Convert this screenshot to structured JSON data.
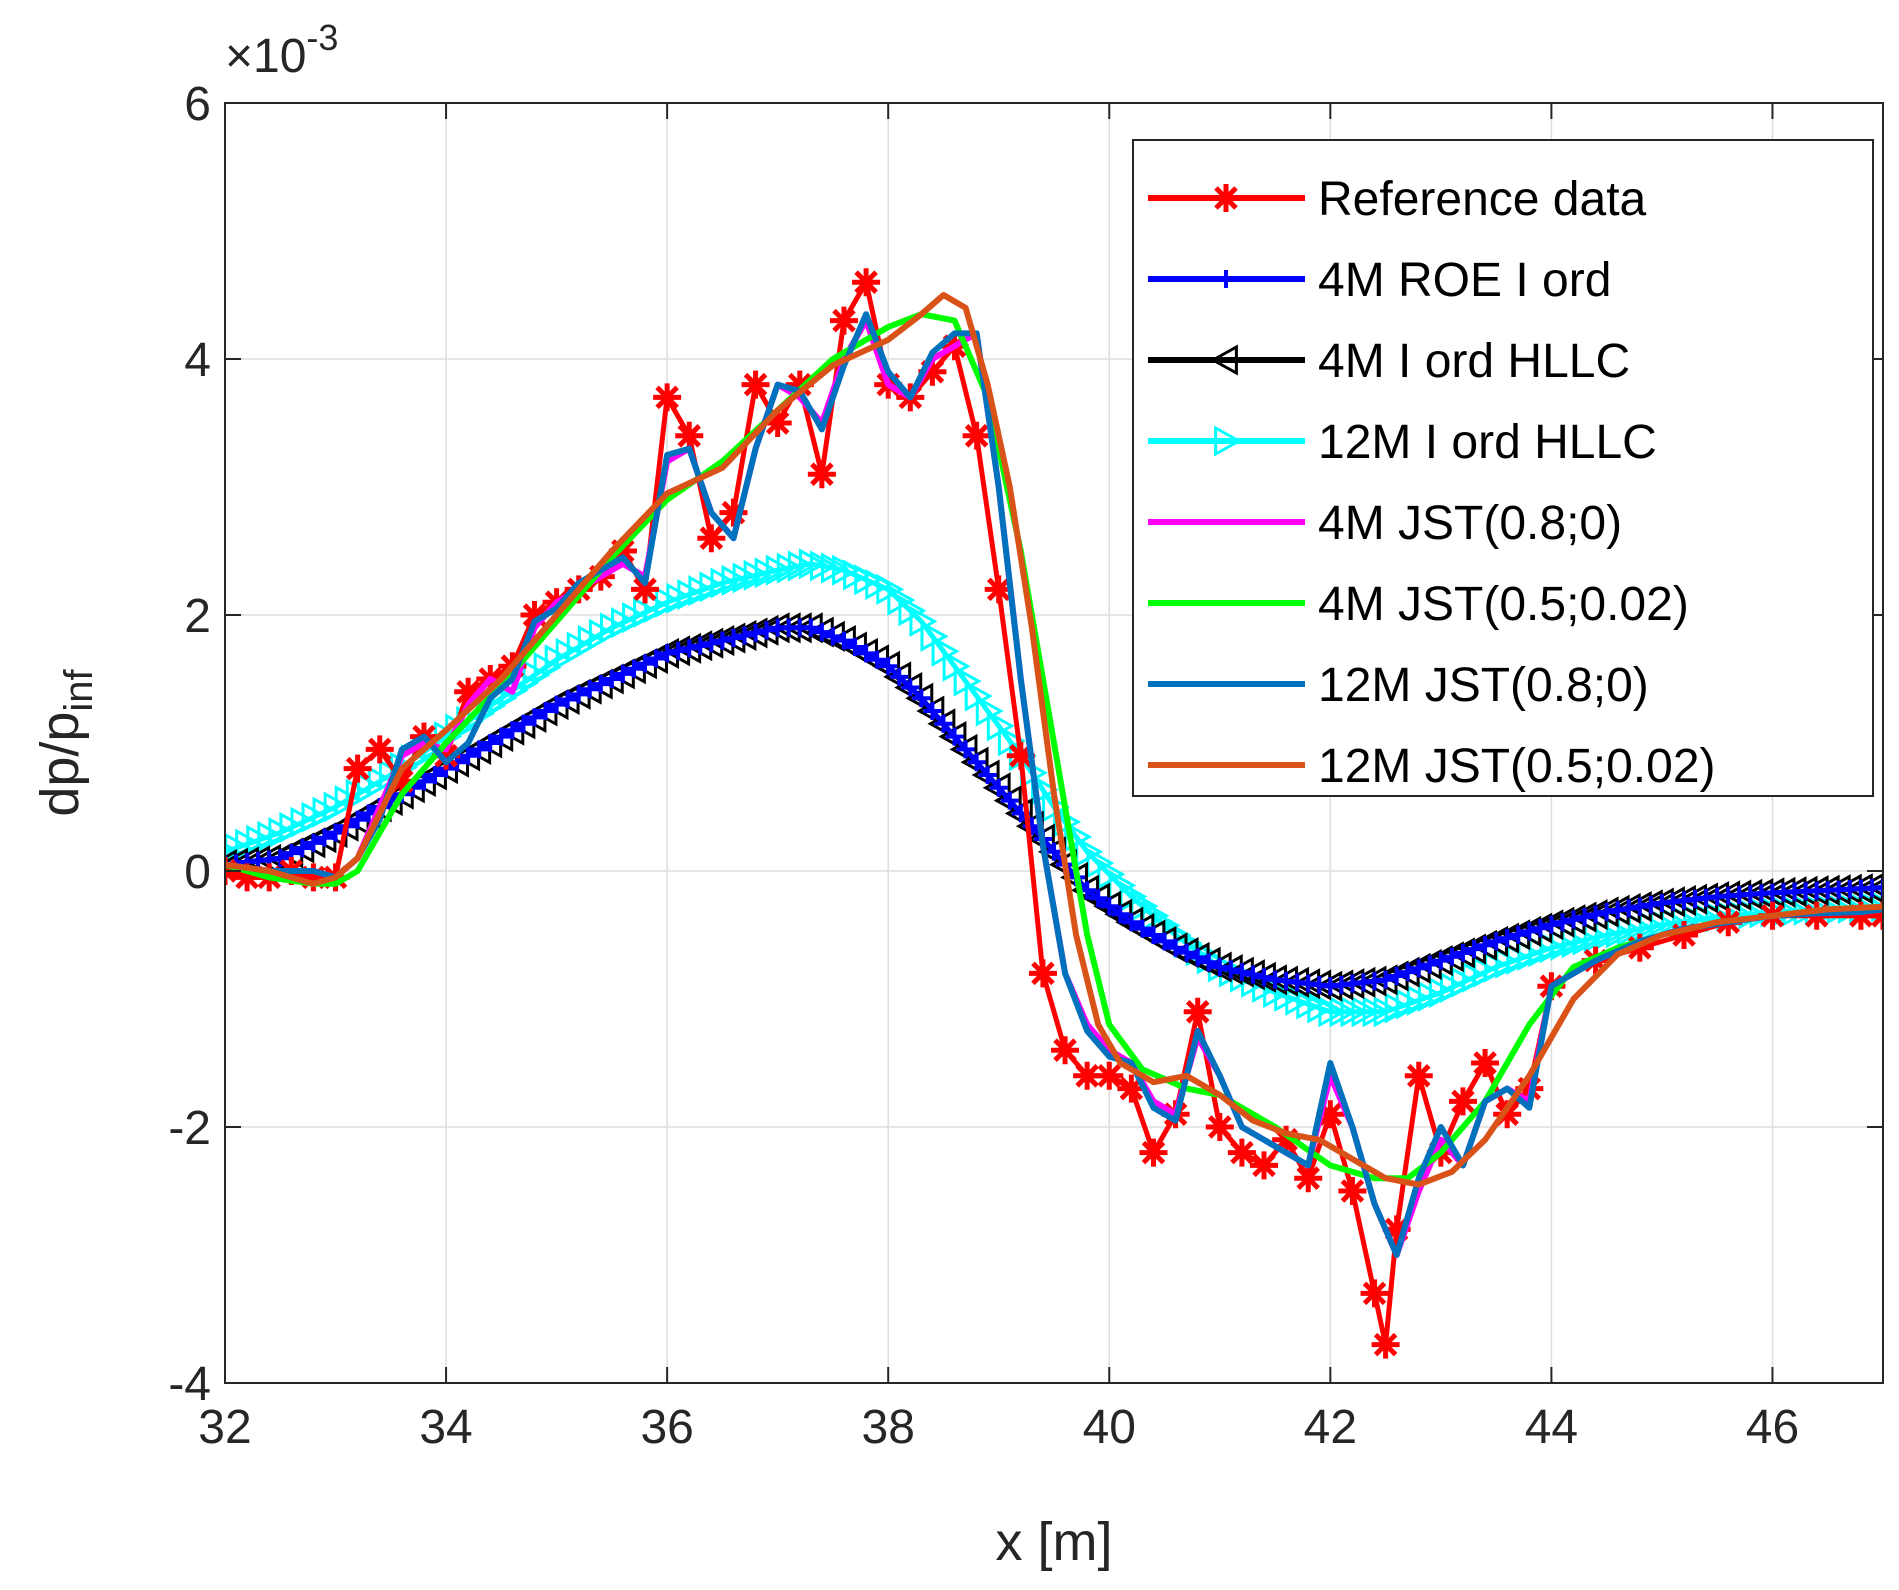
{
  "chart_data": {
    "type": "line",
    "xlabel": "x [m]",
    "ylabel_base": "dp/p",
    "ylabel_sub": "inf",
    "exponent_label": {
      "prefix": "×10",
      "power": "-3"
    },
    "xlim": [
      32,
      47
    ],
    "ylim": [
      -4,
      6
    ],
    "xticks": [
      32,
      34,
      36,
      38,
      40,
      42,
      44,
      46
    ],
    "yticks": [
      -4,
      -2,
      0,
      2,
      4,
      6
    ],
    "xtick_labels": [
      "32",
      "34",
      "36",
      "38",
      "40",
      "42",
      "44",
      "46"
    ],
    "ytick_labels": [
      "-4",
      "-2",
      "0",
      "2",
      "4",
      "6"
    ],
    "grid": true,
    "legend_position": "top-right",
    "series": [
      {
        "name": "Reference data",
        "color": "#ff0000",
        "marker": "star",
        "x": [
          32.0,
          32.2,
          32.4,
          32.6,
          32.8,
          33.0,
          33.2,
          33.4,
          33.6,
          33.8,
          34.0,
          34.2,
          34.4,
          34.6,
          34.8,
          35.0,
          35.2,
          35.4,
          35.6,
          35.8,
          36.0,
          36.2,
          36.4,
          36.6,
          36.8,
          37.0,
          37.2,
          37.4,
          37.6,
          37.8,
          38.0,
          38.2,
          38.4,
          38.6,
          38.8,
          39.0,
          39.2,
          39.4,
          39.6,
          39.8,
          40.0,
          40.2,
          40.4,
          40.6,
          40.8,
          41.0,
          41.2,
          41.4,
          41.6,
          41.8,
          42.0,
          42.2,
          42.4,
          42.5,
          42.6,
          42.8,
          43.0,
          43.2,
          43.4,
          43.6,
          43.8,
          44.0,
          44.4,
          44.8,
          45.2,
          45.6,
          46.0,
          46.4,
          46.8,
          47.0
        ],
        "y": [
          0.0,
          -0.05,
          -0.05,
          0.0,
          -0.05,
          -0.05,
          0.8,
          0.95,
          0.7,
          1.05,
          0.9,
          1.4,
          1.5,
          1.6,
          2.0,
          2.1,
          2.2,
          2.3,
          2.5,
          2.2,
          3.7,
          3.4,
          2.6,
          2.8,
          3.8,
          3.5,
          3.8,
          3.1,
          4.3,
          4.6,
          3.8,
          3.7,
          3.9,
          4.1,
          3.4,
          2.2,
          0.9,
          -0.8,
          -1.4,
          -1.6,
          -1.6,
          -1.7,
          -2.2,
          -1.9,
          -1.1,
          -2.0,
          -2.2,
          -2.3,
          -2.1,
          -2.4,
          -1.9,
          -2.5,
          -3.3,
          -3.7,
          -2.8,
          -1.6,
          -2.2,
          -1.8,
          -1.5,
          -1.9,
          -1.7,
          -0.9,
          -0.7,
          -0.6,
          -0.5,
          -0.4,
          -0.35,
          -0.35,
          -0.35,
          -0.35
        ]
      },
      {
        "name": "4M  ROE I ord",
        "color": "#0000ff",
        "marker": "plus",
        "x": [
          32.0,
          32.5,
          33.0,
          33.5,
          34.0,
          34.5,
          35.0,
          35.5,
          36.0,
          36.5,
          37.0,
          37.3,
          37.6,
          38.0,
          38.3,
          38.6,
          38.9,
          39.2,
          39.5,
          39.8,
          40.2,
          40.6,
          41.0,
          41.5,
          42.0,
          42.5,
          43.0,
          43.5,
          44.0,
          44.5,
          45.0,
          45.5,
          46.0,
          46.5,
          47.0
        ],
        "y": [
          0.05,
          0.1,
          0.3,
          0.55,
          0.8,
          1.05,
          1.3,
          1.5,
          1.7,
          1.8,
          1.9,
          1.9,
          1.8,
          1.6,
          1.35,
          1.05,
          0.75,
          0.45,
          0.15,
          -0.15,
          -0.4,
          -0.6,
          -0.75,
          -0.85,
          -0.9,
          -0.85,
          -0.7,
          -0.55,
          -0.42,
          -0.32,
          -0.25,
          -0.2,
          -0.17,
          -0.15,
          -0.13
        ]
      },
      {
        "name": "4M I ord HLLC",
        "color": "#000000",
        "marker": "triangle-left",
        "x": [
          32.0,
          32.5,
          33.0,
          33.5,
          34.0,
          34.5,
          35.0,
          35.5,
          36.0,
          36.5,
          37.0,
          37.3,
          37.6,
          38.0,
          38.3,
          38.6,
          38.9,
          39.2,
          39.5,
          39.8,
          40.2,
          40.6,
          41.0,
          41.5,
          42.0,
          42.5,
          43.0,
          43.5,
          44.0,
          44.5,
          45.0,
          45.5,
          46.0,
          46.5,
          47.0
        ],
        "y": [
          0.05,
          0.1,
          0.3,
          0.55,
          0.8,
          1.05,
          1.3,
          1.5,
          1.7,
          1.8,
          1.9,
          1.9,
          1.8,
          1.6,
          1.35,
          1.05,
          0.75,
          0.45,
          0.15,
          -0.15,
          -0.4,
          -0.6,
          -0.75,
          -0.85,
          -0.9,
          -0.85,
          -0.7,
          -0.55,
          -0.42,
          -0.32,
          -0.25,
          -0.2,
          -0.17,
          -0.15,
          -0.13
        ]
      },
      {
        "name": "12M I ord HLLC",
        "color": "#00ffff",
        "marker": "triangle-right",
        "x": [
          32.0,
          32.5,
          33.0,
          33.5,
          34.0,
          34.5,
          35.0,
          35.5,
          36.0,
          36.5,
          37.0,
          37.3,
          37.6,
          38.0,
          38.3,
          38.6,
          38.9,
          39.2,
          39.5,
          39.8,
          40.2,
          40.6,
          41.0,
          41.5,
          42.0,
          42.5,
          43.0,
          43.5,
          44.0,
          44.5,
          45.0,
          45.5,
          46.0,
          46.5,
          47.0
        ],
        "y": [
          0.15,
          0.3,
          0.5,
          0.75,
          1.05,
          1.35,
          1.65,
          1.9,
          2.1,
          2.25,
          2.35,
          2.4,
          2.35,
          2.2,
          1.95,
          1.6,
          1.25,
          0.9,
          0.5,
          0.15,
          -0.2,
          -0.5,
          -0.75,
          -0.95,
          -1.1,
          -1.1,
          -0.95,
          -0.75,
          -0.6,
          -0.5,
          -0.42,
          -0.36,
          -0.32,
          -0.3,
          -0.28
        ]
      },
      {
        "name": "4M JST(0.8;0)",
        "color": "#ff00ff",
        "marker": "none",
        "x": [
          32.0,
          32.4,
          32.8,
          33.0,
          33.2,
          33.4,
          33.6,
          33.8,
          34.0,
          34.2,
          34.4,
          34.6,
          34.8,
          35.0,
          35.2,
          35.4,
          35.6,
          35.8,
          36.0,
          36.2,
          36.4,
          36.6,
          36.8,
          37.0,
          37.2,
          37.4,
          37.6,
          37.8,
          38.0,
          38.2,
          38.4,
          38.6,
          38.8,
          39.0,
          39.2,
          39.4,
          39.6,
          39.8,
          40.0,
          40.2,
          40.4,
          40.6,
          40.8,
          41.0,
          41.2,
          41.4,
          41.6,
          41.8,
          42.0,
          42.2,
          42.4,
          42.6,
          42.8,
          43.0,
          43.2,
          43.4,
          43.6,
          43.8,
          44.0,
          44.4,
          44.8,
          45.2,
          45.6,
          46.0,
          46.4,
          46.8,
          47.0
        ],
        "y": [
          0.05,
          0.0,
          0.0,
          -0.05,
          0.1,
          0.5,
          0.9,
          1.0,
          0.95,
          1.3,
          1.5,
          1.4,
          1.9,
          2.1,
          2.2,
          2.3,
          2.4,
          2.3,
          3.2,
          3.3,
          2.8,
          2.6,
          3.3,
          3.8,
          3.7,
          3.5,
          4.0,
          4.3,
          3.8,
          3.7,
          4.0,
          4.1,
          4.2,
          3.0,
          1.5,
          0.2,
          -0.8,
          -1.2,
          -1.4,
          -1.5,
          -1.8,
          -1.9,
          -1.3,
          -1.6,
          -2.0,
          -2.1,
          -2.2,
          -2.3,
          -1.6,
          -2.0,
          -2.6,
          -3.0,
          -2.5,
          -2.1,
          -2.3,
          -1.8,
          -1.7,
          -1.8,
          -0.9,
          -0.7,
          -0.55,
          -0.45,
          -0.4,
          -0.35,
          -0.33,
          -0.32,
          -0.3
        ]
      },
      {
        "name": "4M JST(0.5;0.02)",
        "color": "#00ff00",
        "marker": "none",
        "x": [
          32.0,
          32.4,
          32.8,
          33.0,
          33.2,
          33.6,
          34.0,
          34.5,
          35.0,
          35.5,
          36.0,
          36.5,
          37.0,
          37.5,
          38.0,
          38.3,
          38.6,
          38.9,
          39.2,
          39.5,
          39.8,
          40.0,
          40.3,
          40.7,
          41.0,
          41.5,
          42.0,
          42.4,
          42.7,
          43.0,
          43.4,
          43.8,
          44.2,
          44.6,
          45.0,
          45.5,
          46.0,
          46.5,
          47.0
        ],
        "y": [
          0.05,
          -0.05,
          -0.1,
          -0.1,
          0.0,
          0.6,
          1.0,
          1.45,
          1.95,
          2.45,
          2.9,
          3.2,
          3.6,
          4.0,
          4.25,
          4.35,
          4.3,
          3.7,
          2.5,
          1.0,
          -0.5,
          -1.2,
          -1.55,
          -1.7,
          -1.75,
          -2.0,
          -2.3,
          -2.4,
          -2.4,
          -2.2,
          -1.8,
          -1.2,
          -0.75,
          -0.6,
          -0.5,
          -0.4,
          -0.35,
          -0.3,
          -0.28
        ]
      },
      {
        "name": "12M JST(0.8;0)",
        "color": "#0072bd",
        "marker": "none",
        "x": [
          32.0,
          32.4,
          32.8,
          33.0,
          33.2,
          33.4,
          33.6,
          33.8,
          34.0,
          34.2,
          34.4,
          34.6,
          34.8,
          35.0,
          35.2,
          35.4,
          35.6,
          35.8,
          36.0,
          36.2,
          36.4,
          36.6,
          36.8,
          37.0,
          37.2,
          37.4,
          37.6,
          37.8,
          38.0,
          38.2,
          38.4,
          38.6,
          38.8,
          39.0,
          39.2,
          39.4,
          39.6,
          39.8,
          40.0,
          40.2,
          40.4,
          40.6,
          40.8,
          41.0,
          41.2,
          41.4,
          41.6,
          41.8,
          42.0,
          42.2,
          42.4,
          42.6,
          42.8,
          43.0,
          43.2,
          43.4,
          43.6,
          43.8,
          44.0,
          44.4,
          44.8,
          45.2,
          45.6,
          46.0,
          46.4,
          46.8,
          47.0
        ],
        "y": [
          0.05,
          0.0,
          0.0,
          -0.05,
          0.1,
          0.4,
          0.95,
          1.05,
          0.85,
          1.0,
          1.35,
          1.5,
          1.95,
          2.05,
          2.25,
          2.35,
          2.45,
          2.25,
          3.25,
          3.3,
          2.8,
          2.6,
          3.3,
          3.8,
          3.75,
          3.45,
          3.95,
          4.35,
          3.9,
          3.7,
          4.05,
          4.2,
          4.2,
          3.0,
          1.5,
          0.2,
          -0.8,
          -1.25,
          -1.45,
          -1.5,
          -1.85,
          -1.95,
          -1.25,
          -1.6,
          -2.0,
          -2.1,
          -2.2,
          -2.3,
          -1.5,
          -2.0,
          -2.6,
          -3.0,
          -2.4,
          -2.0,
          -2.3,
          -1.8,
          -1.7,
          -1.85,
          -0.9,
          -0.7,
          -0.55,
          -0.45,
          -0.4,
          -0.35,
          -0.33,
          -0.32,
          -0.3
        ]
      },
      {
        "name": "12M JST(0.5;0.02)",
        "color": "#d95319",
        "marker": "none",
        "x": [
          32.0,
          32.4,
          32.8,
          33.0,
          33.2,
          33.6,
          34.0,
          34.5,
          35.0,
          35.5,
          36.0,
          36.5,
          37.0,
          37.5,
          38.0,
          38.3,
          38.5,
          38.7,
          38.9,
          39.1,
          39.3,
          39.5,
          39.7,
          39.9,
          40.1,
          40.4,
          40.7,
          41.0,
          41.3,
          41.6,
          41.9,
          42.2,
          42.5,
          42.8,
          43.1,
          43.4,
          43.8,
          44.2,
          44.6,
          45.0,
          45.5,
          46.0,
          46.5,
          47.0
        ],
        "y": [
          0.05,
          0.0,
          -0.1,
          -0.05,
          0.1,
          0.8,
          1.1,
          1.5,
          2.0,
          2.5,
          2.95,
          3.15,
          3.6,
          3.95,
          4.15,
          4.35,
          4.5,
          4.4,
          3.8,
          3.0,
          1.9,
          0.6,
          -0.5,
          -1.2,
          -1.5,
          -1.65,
          -1.6,
          -1.75,
          -1.95,
          -2.05,
          -2.1,
          -2.25,
          -2.4,
          -2.45,
          -2.35,
          -2.1,
          -1.6,
          -1.0,
          -0.65,
          -0.5,
          -0.4,
          -0.35,
          -0.3,
          -0.28
        ]
      }
    ]
  }
}
